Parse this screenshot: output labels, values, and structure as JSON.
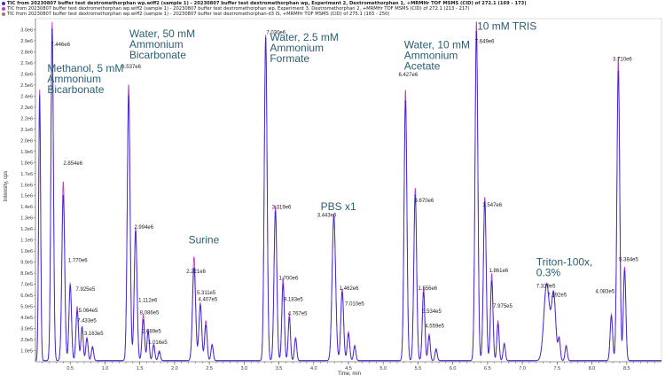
{
  "legend": [
    {
      "text": "TIC from 20230807 buffer test dextromethorphan wp.wiff2 (sample 1) - 20230807 buffer test dextromethorphan wp, Experiment 2, Dextromethorphan 1, +MRMHr TOF MSMS (CID) of 272.1 (169 - 173)",
      "color": "#3b2bd6",
      "bold": true
    },
    {
      "text": "TIC from 20230807 buffer test dextromethorphan wp.wiff2 (sample 1) - 20230807 buffer test dextromethorphan wp, Experiment 3, Dextromethorphan 2, +MRMHr TOF MSMS (CID) of 272.1 (213 - 217)",
      "color": "#c040c0",
      "bold": false
    },
    {
      "text": "TIC from 20230807 buffer test dextromethorphan wp.wiff2 (sample 1) - 20230807 buffer test dextromethorphan-d3 IS, +MRMHr TOF MSMS (CID) of 275.1 (165 - 250)",
      "color": "#b07070",
      "bold": false
    }
  ],
  "chart_data": {
    "type": "line",
    "xlabel": "Time, min",
    "ylabel": "Intensity, cps",
    "xlim": [
      0,
      9.0
    ],
    "ylim": [
      0,
      3100000.0
    ],
    "x_ticks": [
      "0.1",
      "0.2",
      "0.3",
      "0.4",
      "0.5",
      "0.6",
      "0.7",
      "0.8",
      "0.9",
      "1.0",
      "1.1",
      "1.2",
      "1.3",
      "1.4",
      "1.5",
      "1.6",
      "1.7",
      "1.8",
      "1.9",
      "2.0",
      "2.1",
      "2.2",
      "2.3",
      "2.4",
      "2.5",
      "2.6",
      "2.7",
      "2.8",
      "2.9",
      "3.0",
      "3.1",
      "3.2",
      "3.3",
      "3.4",
      "3.5",
      "3.6",
      "3.7",
      "3.8",
      "3.9",
      "4.0",
      "4.1",
      "4.2",
      "4.3",
      "4.4",
      "4.5",
      "4.6",
      "4.7",
      "4.8",
      "4.9",
      "5.0",
      "5.1",
      "5.2",
      "5.3",
      "5.4",
      "5.5",
      "5.6",
      "5.7",
      "5.8",
      "5.9",
      "6.0",
      "6.1",
      "6.2",
      "6.3",
      "6.4",
      "6.5",
      "6.6",
      "6.7",
      "6.8",
      "6.9",
      "7.0",
      "7.1",
      "7.2",
      "7.3",
      "7.4",
      "7.5",
      "7.6",
      "7.7",
      "7.8",
      "7.9",
      "8.0",
      "8.1",
      "8.2",
      "8.3",
      "8.4",
      "8.5",
      "8.6",
      "8.7",
      "8.8",
      "8.9"
    ],
    "x_tick_labels": [
      "0.5",
      "1.0",
      "1.5",
      "2.0",
      "2.5",
      "3.0",
      "3.5",
      "4.0",
      "4.5",
      "5.0",
      "5.5",
      "6.0",
      "6.5",
      "7.0",
      "7.5",
      "8.0",
      "8.5"
    ],
    "y_tick_labels": [
      "1.0e5",
      "2.0e5",
      "3.0e5",
      "4.0e5",
      "5.0e5",
      "6.0e5",
      "7.0e5",
      "8.0e5",
      "9.0e5",
      "1.0e6",
      "1.1e6",
      "1.2e6",
      "1.3e6",
      "1.4e6",
      "1.5e6",
      "1.6e6",
      "1.7e6",
      "1.8e6",
      "1.9e6",
      "2.0e6",
      "2.1e6",
      "2.2e6",
      "2.3e6",
      "2.4e6",
      "2.5e6",
      "2.6e6",
      "2.7e6",
      "2.8e6",
      "2.9e6",
      "3.0e6"
    ],
    "series": [
      {
        "color": "#3b2bd6"
      },
      {
        "color": "#c040c0"
      }
    ],
    "segments": [
      {
        "label_lines": [
          "Methanol, 5 mM",
          "Ammonium",
          "Bicarbonate"
        ],
        "label_x": 0.17,
        "label_y": 2620000.0
      },
      {
        "label_lines": [
          "Water, 50 mM",
          "Ammonium",
          "Bicarbonate"
        ],
        "label_x": 1.35,
        "label_y": 2930000.0
      },
      {
        "label_lines": [
          "Surine"
        ],
        "label_x": 2.2,
        "label_y": 1070000.0
      },
      {
        "label_lines": [
          "Water, 2.5 mM",
          "Ammonium",
          "Formate"
        ],
        "label_x": 3.37,
        "label_y": 2900000.0
      },
      {
        "label_lines": [
          "PBS x1"
        ],
        "label_x": 4.1,
        "label_y": 1370000.0
      },
      {
        "label_lines": [
          "Water, 10 mM",
          "Ammonium",
          "Acetate"
        ],
        "label_x": 5.3,
        "label_y": 2830000.0
      },
      {
        "label_lines": [
          "10 mM TRIS"
        ],
        "label_x": 6.35,
        "label_y": 3000000.0
      },
      {
        "label_lines": [
          "Triton-100x,",
          "0.3%"
        ],
        "label_x": 7.2,
        "label_y": 870000.0
      }
    ],
    "peaks": [
      {
        "t": 0.06,
        "b": 2400000.0,
        "p": 2450000.0,
        "w": 0.014
      },
      {
        "t": 0.24,
        "b": 3000000.0,
        "p": 3060000.0,
        "w": 0.018,
        "label": "7.446e6",
        "lx": 0.22,
        "ly": 2850000.0
      },
      {
        "t": 0.4,
        "b": 1500000.0,
        "p": 1620000.0,
        "w": 0.02,
        "label": "2.854e6",
        "lx": 0.4,
        "ly": 1780000.0
      },
      {
        "t": 0.5,
        "b": 680000.0,
        "p": 700000.0,
        "w": 0.018,
        "label": "1.770e6",
        "lx": 0.47,
        "ly": 900000.0
      },
      {
        "t": 0.6,
        "b": 450000.0,
        "p": 490000.0,
        "w": 0.018,
        "label": "7.925e5",
        "lx": 0.58,
        "ly": 640000.0
      },
      {
        "t": 0.67,
        "b": 300000.0,
        "p": 310000.0,
        "w": 0.016,
        "label": "5.064e5",
        "lx": 0.62,
        "ly": 450000.0
      },
      {
        "t": 0.74,
        "b": 200000.0,
        "p": 210000.0,
        "w": 0.016,
        "label": "7.433e5",
        "lx": 0.6,
        "ly": 355000.0
      },
      {
        "t": 0.82,
        "b": 120000.0,
        "p": 130000.0,
        "w": 0.016,
        "label": "3.163e5",
        "lx": 0.7,
        "ly": 240000.0
      },
      {
        "t": 1.34,
        "b": 2400000.0,
        "p": 2500000.0,
        "w": 0.02,
        "label": "6.537e6",
        "lx": 1.24,
        "ly": 2650000.0
      },
      {
        "t": 1.44,
        "b": 1170000.0,
        "p": 1200000.0,
        "w": 0.02,
        "label": "2.994e6",
        "lx": 1.42,
        "ly": 1200000.0
      },
      {
        "t": 1.55,
        "b": 370000.0,
        "p": 420000.0,
        "w": 0.018,
        "label": "1.112e6",
        "lx": 1.48,
        "ly": 540000.0
      },
      {
        "t": 1.62,
        "b": 260000.0,
        "p": 280000.0,
        "w": 0.016,
        "label": "8.086e5",
        "lx": 1.5,
        "ly": 430000.0
      },
      {
        "t": 1.7,
        "b": 140000.0,
        "p": 150000.0,
        "w": 0.016,
        "label": "2.689e5",
        "lx": 1.53,
        "ly": 260000.0
      },
      {
        "t": 1.78,
        "b": 80000.0,
        "p": 90000.0,
        "w": 0.016,
        "label": "1.016e5",
        "lx": 1.62,
        "ly": 160000.0
      },
      {
        "t": 2.28,
        "b": 840000.0,
        "p": 940000.0,
        "w": 0.022,
        "label": "2.221e6",
        "lx": 2.17,
        "ly": 800000.0
      },
      {
        "t": 2.37,
        "b": 500000.0,
        "p": 520000.0,
        "w": 0.02,
        "label": "5.311e5",
        "lx": 2.32,
        "ly": 610000.0
      },
      {
        "t": 2.45,
        "b": 320000.0,
        "p": 360000.0,
        "w": 0.018,
        "label": "4.407e5",
        "lx": 2.34,
        "ly": 550000.0
      },
      {
        "t": 2.54,
        "b": 140000.0,
        "p": 150000.0,
        "w": 0.016
      },
      {
        "t": 3.31,
        "b": 2920000.0,
        "p": 2950000.0,
        "w": 0.02,
        "label": "7.030e6",
        "lx": 3.32,
        "ly": 2960000.0
      },
      {
        "t": 3.45,
        "b": 1350000.0,
        "p": 1400000.0,
        "w": 0.02,
        "label": "3.319e6",
        "lx": 3.4,
        "ly": 1380000.0
      },
      {
        "t": 3.56,
        "b": 690000.0,
        "p": 750000.0,
        "w": 0.018,
        "label": "1.700e6",
        "lx": 3.5,
        "ly": 740000.0
      },
      {
        "t": 3.65,
        "b": 390000.0,
        "p": 420000.0,
        "w": 0.016,
        "label": "9.183e5",
        "lx": 3.57,
        "ly": 550000.0
      },
      {
        "t": 3.74,
        "b": 200000.0,
        "p": 210000.0,
        "w": 0.016,
        "label": "4.767e5",
        "lx": 3.63,
        "ly": 420000.0
      },
      {
        "t": 4.29,
        "b": 1300000.0,
        "p": 1320000.0,
        "w": 0.025,
        "label": "3.443e6",
        "lx": 4.05,
        "ly": 1310000.0
      },
      {
        "t": 4.41,
        "b": 620000.0,
        "p": 650000.0,
        "w": 0.02,
        "label": "1.462e6",
        "lx": 4.37,
        "ly": 650000.0
      },
      {
        "t": 4.5,
        "b": 240000.0,
        "p": 260000.0,
        "w": 0.018,
        "label": "7.010e5",
        "lx": 4.45,
        "ly": 510000.0
      },
      {
        "t": 4.59,
        "b": 130000.0,
        "p": 140000.0,
        "w": 0.016
      },
      {
        "t": 5.32,
        "b": 2350000.0,
        "p": 2450000.0,
        "w": 0.02,
        "label": "6.427e6",
        "lx": 5.22,
        "ly": 2580000.0
      },
      {
        "t": 5.46,
        "b": 1500000.0,
        "p": 1560000.0,
        "w": 0.02,
        "label": "3.670e6",
        "lx": 5.45,
        "ly": 1440000.0
      },
      {
        "t": 5.58,
        "b": 620000.0,
        "p": 660000.0,
        "w": 0.018,
        "label": "1.556e6",
        "lx": 5.5,
        "ly": 650000.0
      },
      {
        "t": 5.66,
        "b": 220000.0,
        "p": 240000.0,
        "w": 0.016,
        "label": "5.534e5",
        "lx": 5.56,
        "ly": 440000.0
      },
      {
        "t": 5.76,
        "b": 100000.0,
        "p": 110000.0,
        "w": 0.016,
        "label": "4.559e5",
        "lx": 5.6,
        "ly": 310000.0
      },
      {
        "t": 6.34,
        "b": 2980000.0,
        "p": 3070000.0,
        "w": 0.02,
        "label": "7.649e6",
        "lx": 6.32,
        "ly": 2880000.0
      },
      {
        "t": 6.46,
        "b": 1440000.0,
        "p": 1480000.0,
        "w": 0.02,
        "label": "3.547e6",
        "lx": 6.43,
        "ly": 1400000.0
      },
      {
        "t": 6.56,
        "b": 720000.0,
        "p": 790000.0,
        "w": 0.018,
        "label": "1.861e6",
        "lx": 6.52,
        "ly": 810000.0
      },
      {
        "t": 6.65,
        "b": 330000.0,
        "p": 360000.0,
        "w": 0.016,
        "label": "7.975e5",
        "lx": 6.58,
        "ly": 490000.0
      },
      {
        "t": 6.74,
        "b": 150000.0,
        "p": 160000.0,
        "w": 0.016
      },
      {
        "t": 7.35,
        "b": 690000.0,
        "p": 700000.0,
        "w": 0.04,
        "label": "7.329e5",
        "lx": 7.2,
        "ly": 670000.0
      },
      {
        "t": 7.45,
        "b": 590000.0,
        "p": 600000.0,
        "w": 0.03,
        "label": "7.192e5",
        "lx": 7.36,
        "ly": 590000.0
      },
      {
        "t": 7.53,
        "b": 190000.0,
        "p": 200000.0,
        "w": 0.016
      },
      {
        "t": 7.63,
        "b": 130000.0,
        "p": 140000.0,
        "w": 0.016
      },
      {
        "t": 8.28,
        "b": 400000.0,
        "p": 420000.0,
        "w": 0.018,
        "label": "4.083e5",
        "lx": 8.05,
        "ly": 620000.0
      },
      {
        "t": 8.38,
        "b": 2620000.0,
        "p": 2750000.0,
        "w": 0.02,
        "label": "3.710e6",
        "lx": 8.3,
        "ly": 2720000.0
      },
      {
        "t": 8.47,
        "b": 820000.0,
        "p": 850000.0,
        "w": 0.018,
        "label": "5.384e5",
        "lx": 8.39,
        "ly": 910000.0
      }
    ]
  }
}
